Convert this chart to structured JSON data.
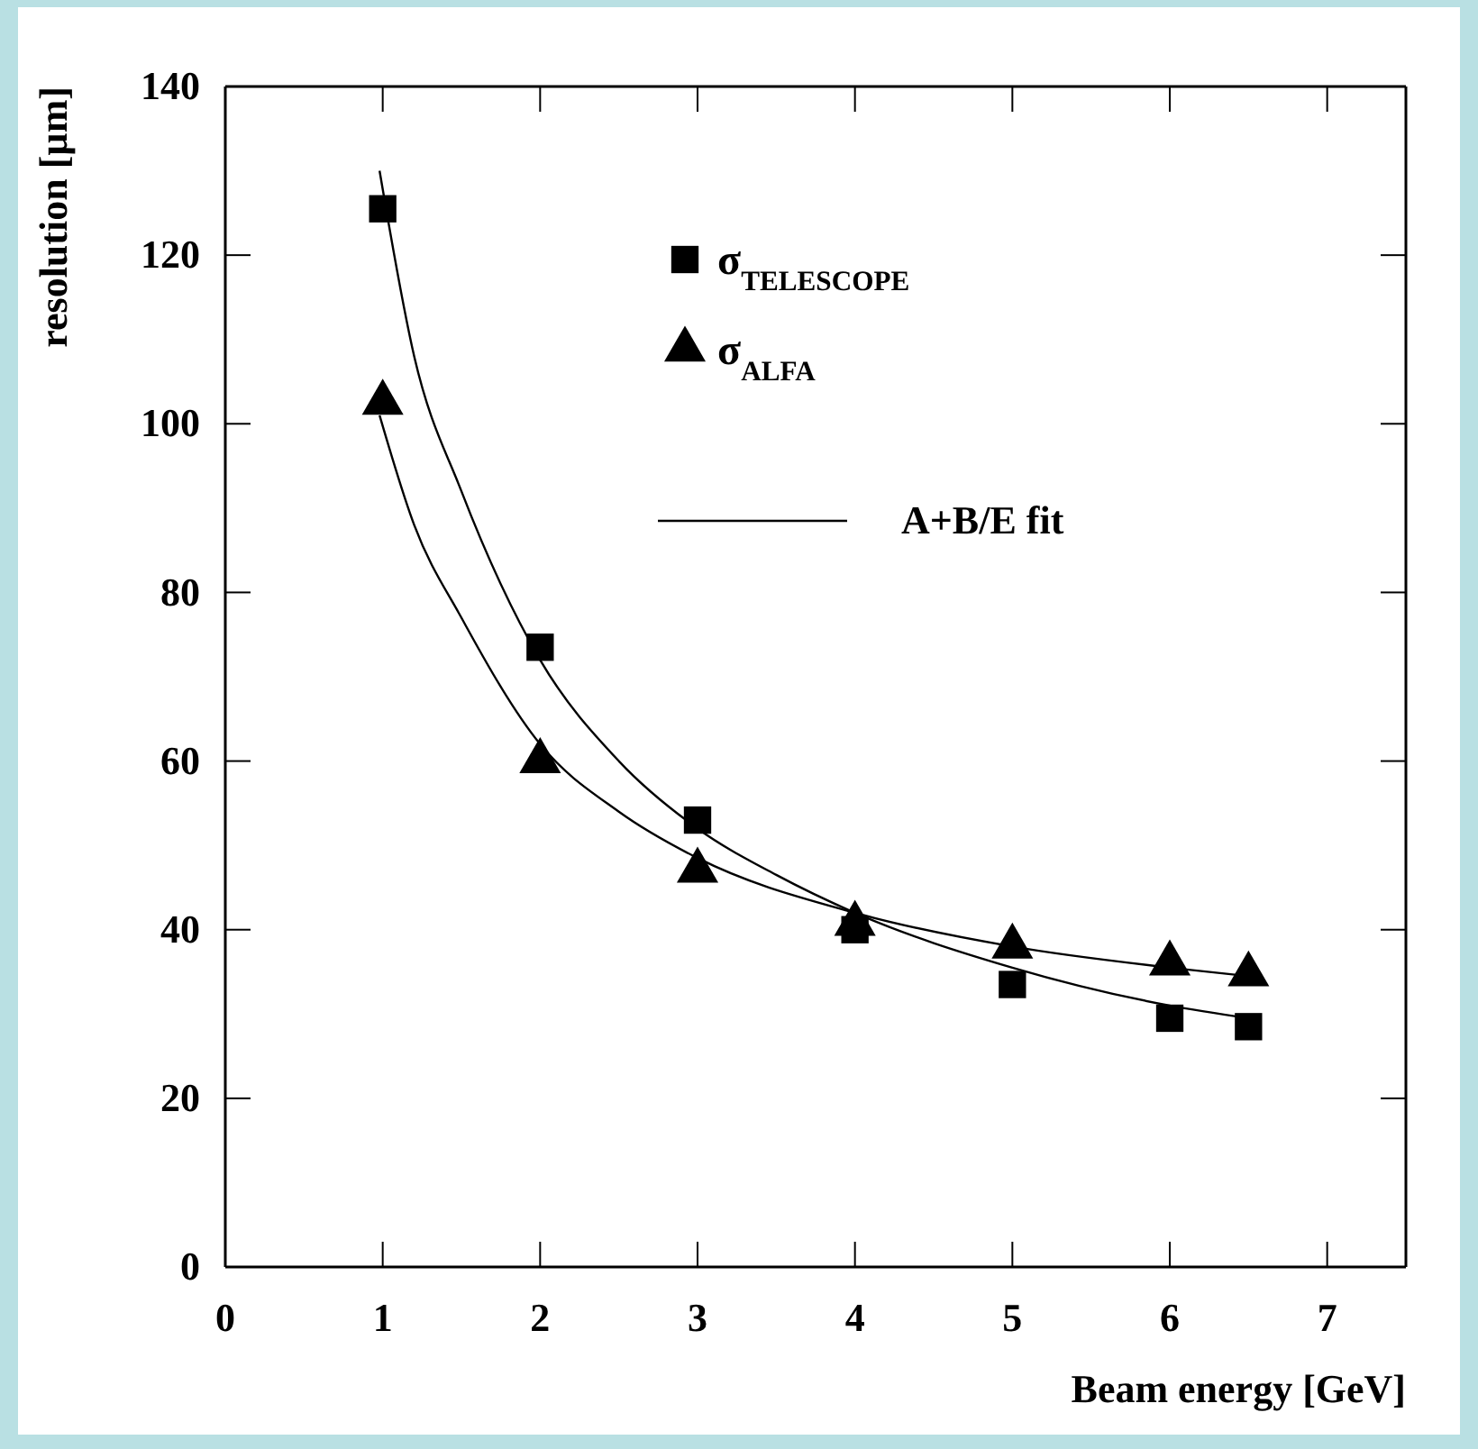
{
  "chart_data": {
    "type": "scatter",
    "xlabel": "Beam energy [GeV]",
    "ylabel": "resolution [µm]",
    "xlim": [
      0,
      7.5
    ],
    "xticks": [
      0,
      1,
      2,
      3,
      4,
      5,
      6,
      7
    ],
    "ylim": [
      0,
      140
    ],
    "yticks": [
      0,
      20,
      40,
      60,
      80,
      100,
      120,
      140
    ],
    "grid": false,
    "legend": "top right",
    "series": [
      {
        "name": "σ$_{TELESCOPE}$",
        "marker": "square",
        "color": "#000000",
        "x": [
          1,
          2,
          3,
          4,
          5,
          6,
          6.5
        ],
        "values": [
          125.5,
          73.5,
          53,
          40,
          33.5,
          29.5,
          28.5
        ]
      },
      {
        "name": "σ$_{ALFA}$",
        "marker": "triangle",
        "color": "#000000",
        "x": [
          1,
          2,
          3,
          4,
          5,
          6,
          6.5
        ],
        "values": [
          102.5,
          60,
          47,
          40.7,
          38,
          36,
          34.7
        ]
      },
      {
        "name": "A+B/E fit",
        "type": "line",
        "marker": "none",
        "color": "#000000",
        "x": [
          0.98,
          1.2,
          1.5,
          2,
          2.5,
          3,
          3.5,
          4,
          5,
          6,
          6.5
        ],
        "values": [
          130,
          108,
          92,
          72,
          60,
          52,
          46.5,
          42,
          35.5,
          31,
          29.5
        ]
      },
      {
        "type": "line",
        "marker": "none",
        "color": "#000000",
        "x": [
          0.98,
          1.2,
          1.5,
          2,
          2.5,
          3,
          4,
          5,
          6,
          6.5
        ],
        "values": [
          101,
          88,
          77,
          62,
          54,
          48.5,
          42,
          38,
          35.5,
          34.5
        ]
      }
    ]
  }
}
